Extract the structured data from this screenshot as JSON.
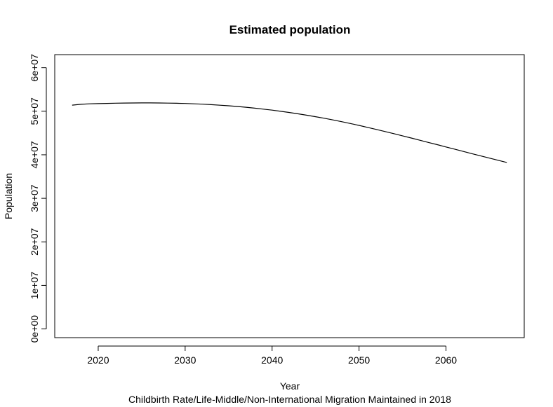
{
  "chart_data": {
    "type": "line",
    "title": "Estimated population",
    "xlabel": "Year",
    "ylabel": "Population",
    "subtitle": "Childbirth Rate/Life-Middle/Non-International Migration Maintained in 2018",
    "xlim": [
      2015,
      2069
    ],
    "ylim": [
      -2000000,
      63000000
    ],
    "xticks": [
      2020,
      2030,
      2040,
      2050,
      2060
    ],
    "xtick_labels": [
      "2020",
      "2030",
      "2040",
      "2050",
      "2060"
    ],
    "yticks": [
      0,
      10000000,
      20000000,
      30000000,
      40000000,
      50000000,
      60000000
    ],
    "ytick_labels": [
      "0e+00",
      "1e+07",
      "2e+07",
      "3e+07",
      "4e+07",
      "5e+07",
      "6e+07"
    ],
    "grid": false,
    "series": [
      {
        "x": [
          2017,
          2018,
          2019,
          2020,
          2021,
          2022,
          2023,
          2024,
          2025,
          2026,
          2027,
          2028,
          2029,
          2030,
          2031,
          2032,
          2033,
          2034,
          2035,
          2036,
          2037,
          2038,
          2039,
          2040,
          2041,
          2042,
          2043,
          2044,
          2045,
          2046,
          2047,
          2048,
          2049,
          2050,
          2051,
          2052,
          2053,
          2054,
          2055,
          2056,
          2057,
          2058,
          2059,
          2060,
          2061,
          2062,
          2063,
          2064,
          2065,
          2066,
          2067
        ],
        "values": [
          51400000,
          51600000,
          51700000,
          51760000,
          51810000,
          51850000,
          51880000,
          51900000,
          51910000,
          51910000,
          51900000,
          51870000,
          51830000,
          51780000,
          51710000,
          51620000,
          51510000,
          51390000,
          51250000,
          51090000,
          50910000,
          50710000,
          50490000,
          50250000,
          49990000,
          49710000,
          49410000,
          49090000,
          48750000,
          48390000,
          48010000,
          47610000,
          47190000,
          46750000,
          46290000,
          45820000,
          45340000,
          44850000,
          44350000,
          43850000,
          43340000,
          42830000,
          42320000,
          41800000,
          41290000,
          40770000,
          40250000,
          39740000,
          39230000,
          38730000,
          38240000
        ]
      }
    ]
  }
}
